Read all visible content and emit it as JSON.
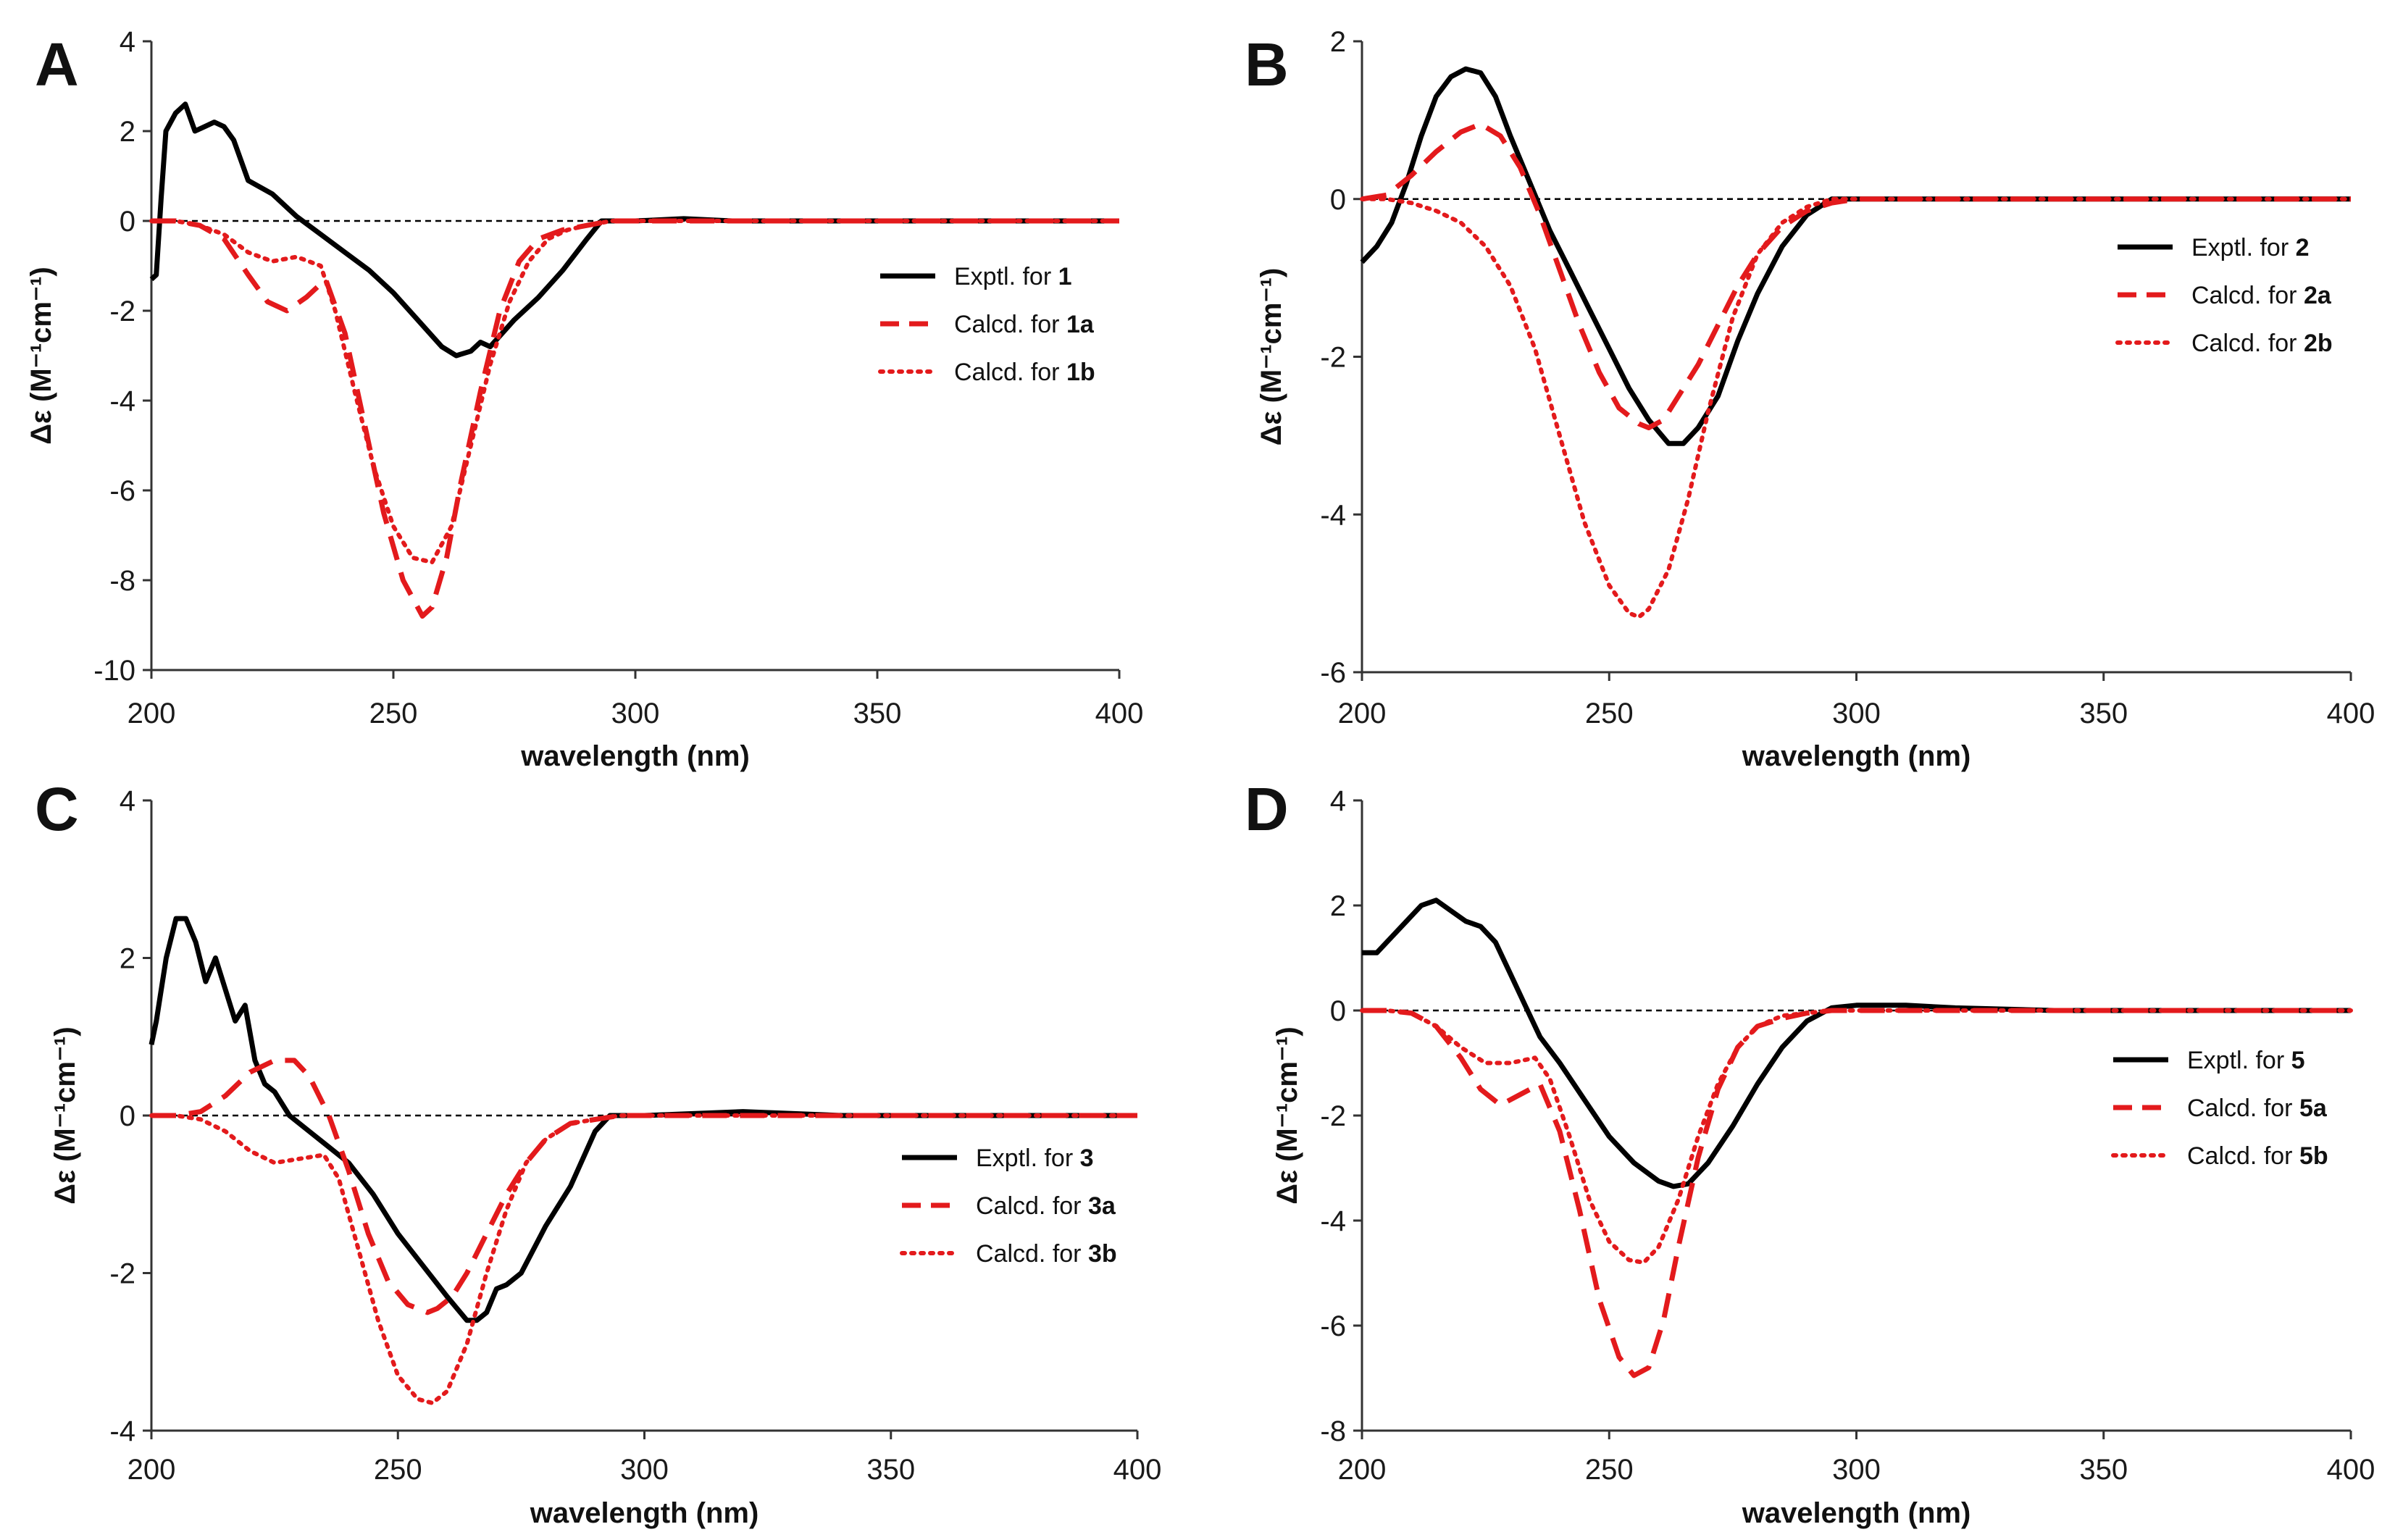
{
  "figure": {
    "colors": {
      "experimental": "#000000",
      "calc_a": "#e31a1c",
      "calc_b": "#e31a1c",
      "baseline": "#000000"
    }
  },
  "chart_data": [
    {
      "panel": "A",
      "type": "line",
      "xlabel": "wavelength (nm)",
      "ylabel": "Δε (M⁻¹cm⁻¹)",
      "xlim": [
        200,
        400
      ],
      "ylim": [
        -10,
        4
      ],
      "xticks": [
        200,
        250,
        300,
        350,
        400
      ],
      "yticks": [
        -10,
        -8,
        -6,
        -4,
        -2,
        0,
        2,
        4
      ],
      "legend_position": "center-right",
      "series": [
        {
          "name": "Exptl. for 1",
          "legend_prefix": "Exptl. for ",
          "legend_compound": "1",
          "style": "solid",
          "x": [
            200,
            201,
            202,
            203,
            205,
            207,
            209,
            211,
            213,
            215,
            217,
            220,
            225,
            230,
            235,
            240,
            245,
            250,
            255,
            260,
            263,
            266,
            268,
            270,
            275,
            280,
            285,
            290,
            293,
            300,
            310,
            320,
            340,
            360,
            380,
            400
          ],
          "y": [
            -1.3,
            -1.2,
            0.5,
            2.0,
            2.4,
            2.6,
            2.0,
            2.1,
            2.2,
            2.1,
            1.8,
            0.9,
            0.6,
            0.1,
            -0.3,
            -0.7,
            -1.1,
            -1.6,
            -2.2,
            -2.8,
            -3.0,
            -2.9,
            -2.7,
            -2.8,
            -2.2,
            -1.7,
            -1.1,
            -0.4,
            0.0,
            0.0,
            0.05,
            0.0,
            0.0,
            0.0,
            0.0,
            0.0
          ]
        },
        {
          "name": "Calcd. for 1a",
          "legend_prefix": "Calcd. for ",
          "legend_compound": "1a",
          "style": "dashed",
          "x": [
            200,
            205,
            210,
            215,
            220,
            224,
            228,
            232,
            236,
            240,
            244,
            248,
            252,
            256,
            258,
            261,
            264,
            268,
            272,
            276,
            280,
            285,
            290,
            295,
            300,
            320,
            340,
            360,
            380,
            400
          ],
          "y": [
            0.0,
            0.0,
            -0.1,
            -0.4,
            -1.2,
            -1.8,
            -2.0,
            -1.7,
            -1.3,
            -2.5,
            -4.5,
            -6.5,
            -8.0,
            -8.8,
            -8.6,
            -7.5,
            -5.8,
            -3.8,
            -2.0,
            -0.9,
            -0.4,
            -0.2,
            -0.1,
            0.0,
            0.0,
            0.0,
            0.0,
            0.0,
            0.0,
            0.0
          ]
        },
        {
          "name": "Calcd. for 1b",
          "legend_prefix": "Calcd. for ",
          "legend_compound": "1b",
          "style": "dotted",
          "x": [
            200,
            205,
            210,
            215,
            220,
            225,
            230,
            235,
            238,
            242,
            246,
            250,
            254,
            258,
            262,
            266,
            270,
            274,
            278,
            282,
            286,
            290,
            295,
            300,
            320,
            340,
            360,
            380,
            400
          ],
          "y": [
            0.0,
            0.0,
            -0.1,
            -0.3,
            -0.7,
            -0.9,
            -0.8,
            -1.0,
            -2.0,
            -3.8,
            -5.5,
            -6.8,
            -7.5,
            -7.6,
            -6.8,
            -5.0,
            -3.2,
            -1.8,
            -0.9,
            -0.4,
            -0.2,
            -0.1,
            0.0,
            0.0,
            0.0,
            0.0,
            0.0,
            0.0,
            0.0
          ]
        }
      ]
    },
    {
      "panel": "B",
      "type": "line",
      "xlabel": "wavelength (nm)",
      "ylabel": "Δε (M⁻¹cm⁻¹)",
      "xlim": [
        200,
        400
      ],
      "ylim": [
        -6,
        2
      ],
      "xticks": [
        200,
        250,
        300,
        350,
        400
      ],
      "yticks": [
        -6,
        -4,
        -2,
        0,
        2
      ],
      "legend_position": "top-right",
      "series": [
        {
          "name": "Exptl. for 2",
          "legend_prefix": "Exptl. for ",
          "legend_compound": "2",
          "style": "solid",
          "x": [
            200,
            203,
            206,
            209,
            212,
            215,
            218,
            221,
            224,
            227,
            230,
            234,
            238,
            242,
            246,
            250,
            254,
            258,
            262,
            265,
            268,
            272,
            276,
            280,
            285,
            290,
            295,
            298,
            300,
            320,
            340,
            360,
            380,
            400
          ],
          "y": [
            -0.8,
            -0.6,
            -0.3,
            0.2,
            0.8,
            1.3,
            1.55,
            1.65,
            1.6,
            1.3,
            0.8,
            0.2,
            -0.4,
            -0.9,
            -1.4,
            -1.9,
            -2.4,
            -2.8,
            -3.1,
            -3.1,
            -2.9,
            -2.5,
            -1.8,
            -1.2,
            -0.6,
            -0.2,
            0.0,
            0.0,
            0.0,
            0.0,
            0.0,
            0.0,
            0.0,
            0.0
          ]
        },
        {
          "name": "Calcd. for 2a",
          "legend_prefix": "Calcd. for ",
          "legend_compound": "2a",
          "style": "dashed",
          "x": [
            200,
            205,
            210,
            215,
            220,
            224,
            228,
            232,
            236,
            240,
            244,
            248,
            252,
            256,
            258,
            261,
            264,
            268,
            272,
            276,
            280,
            285,
            290,
            295,
            300,
            320,
            340,
            360,
            380,
            400
          ],
          "y": [
            0.0,
            0.05,
            0.3,
            0.6,
            0.85,
            0.95,
            0.8,
            0.4,
            -0.2,
            -0.9,
            -1.6,
            -2.2,
            -2.65,
            -2.85,
            -2.9,
            -2.8,
            -2.5,
            -2.1,
            -1.6,
            -1.1,
            -0.7,
            -0.35,
            -0.15,
            -0.05,
            0.0,
            0.0,
            0.0,
            0.0,
            0.0,
            0.0
          ]
        },
        {
          "name": "Calcd. for 2b",
          "legend_prefix": "Calcd. for ",
          "legend_compound": "2b",
          "style": "dotted",
          "x": [
            200,
            205,
            210,
            215,
            220,
            225,
            230,
            235,
            240,
            245,
            250,
            254,
            256,
            258,
            262,
            266,
            270,
            275,
            280,
            285,
            290,
            295,
            300,
            320,
            340,
            360,
            380,
            400
          ],
          "y": [
            0.0,
            0.0,
            -0.05,
            -0.15,
            -0.3,
            -0.6,
            -1.1,
            -1.9,
            -3.0,
            -4.1,
            -4.9,
            -5.25,
            -5.3,
            -5.2,
            -4.7,
            -3.8,
            -2.7,
            -1.5,
            -0.7,
            -0.3,
            -0.1,
            0.0,
            0.0,
            0.0,
            0.0,
            0.0,
            0.0,
            0.0
          ]
        }
      ]
    },
    {
      "panel": "C",
      "type": "line",
      "xlabel": "wavelength (nm)",
      "ylabel": "Δε (M⁻¹cm⁻¹)",
      "xlim": [
        200,
        400
      ],
      "ylim": [
        -4,
        4
      ],
      "xticks": [
        200,
        250,
        300,
        350,
        400
      ],
      "yticks": [
        -4,
        -2,
        0,
        2,
        4
      ],
      "legend_position": "bottom-right",
      "series": [
        {
          "name": "Exptl. for 3",
          "legend_prefix": "Exptl. for ",
          "legend_compound": "3",
          "style": "solid",
          "x": [
            200,
            201,
            203,
            205,
            207,
            209,
            211,
            213,
            215,
            217,
            219,
            221,
            223,
            225,
            228,
            232,
            236,
            240,
            245,
            250,
            255,
            260,
            264,
            266,
            268,
            270,
            272,
            275,
            280,
            285,
            290,
            293,
            300,
            320,
            340,
            360,
            380,
            400
          ],
          "y": [
            0.9,
            1.2,
            2.0,
            2.5,
            2.5,
            2.2,
            1.7,
            2.0,
            1.6,
            1.2,
            1.4,
            0.7,
            0.4,
            0.3,
            0.0,
            -0.2,
            -0.4,
            -0.6,
            -1.0,
            -1.5,
            -1.9,
            -2.3,
            -2.6,
            -2.6,
            -2.5,
            -2.2,
            -2.15,
            -2.0,
            -1.4,
            -0.9,
            -0.2,
            0.0,
            0.0,
            0.05,
            0.0,
            0.0,
            0.0,
            0.0
          ]
        },
        {
          "name": "Calcd. for 3a",
          "legend_prefix": "Calcd. for ",
          "legend_compound": "3a",
          "style": "dashed",
          "x": [
            200,
            205,
            210,
            215,
            220,
            225,
            229,
            232,
            236,
            240,
            244,
            248,
            252,
            256,
            258,
            261,
            264,
            268,
            272,
            276,
            280,
            285,
            290,
            295,
            300,
            320,
            340,
            360,
            380,
            400
          ],
          "y": [
            0.0,
            0.0,
            0.05,
            0.25,
            0.55,
            0.7,
            0.7,
            0.5,
            0.0,
            -0.7,
            -1.5,
            -2.1,
            -2.4,
            -2.5,
            -2.45,
            -2.3,
            -2.0,
            -1.5,
            -1.0,
            -0.6,
            -0.3,
            -0.1,
            -0.05,
            0.0,
            0.0,
            0.0,
            0.0,
            0.0,
            0.0,
            0.0
          ]
        },
        {
          "name": "Calcd. for 3b",
          "legend_prefix": "Calcd. for ",
          "legend_compound": "3b",
          "style": "dotted",
          "x": [
            200,
            205,
            210,
            215,
            220,
            225,
            230,
            235,
            238,
            242,
            246,
            250,
            254,
            257,
            260,
            264,
            268,
            272,
            276,
            280,
            285,
            290,
            295,
            300,
            320,
            340,
            360,
            380,
            400
          ],
          "y": [
            0.0,
            0.0,
            -0.05,
            -0.2,
            -0.45,
            -0.6,
            -0.55,
            -0.5,
            -0.8,
            -1.7,
            -2.6,
            -3.3,
            -3.6,
            -3.65,
            -3.5,
            -2.9,
            -2.0,
            -1.2,
            -0.6,
            -0.3,
            -0.1,
            -0.05,
            0.0,
            0.0,
            0.0,
            0.0,
            0.0,
            0.0,
            0.0
          ]
        }
      ]
    },
    {
      "panel": "D",
      "type": "line",
      "xlabel": "wavelength (nm)",
      "ylabel": "Δε (M⁻¹cm⁻¹)",
      "xlim": [
        200,
        400
      ],
      "ylim": [
        -8,
        4
      ],
      "xticks": [
        200,
        250,
        300,
        350,
        400
      ],
      "yticks": [
        -8,
        -6,
        -4,
        -2,
        0,
        2,
        4
      ],
      "legend_position": "center-right",
      "series": [
        {
          "name": "Exptl. for 5",
          "legend_prefix": "Exptl. for ",
          "legend_compound": "5",
          "style": "solid",
          "x": [
            200,
            203,
            206,
            209,
            212,
            215,
            218,
            221,
            224,
            227,
            230,
            233,
            236,
            240,
            245,
            250,
            255,
            260,
            263,
            266,
            270,
            275,
            280,
            285,
            290,
            295,
            300,
            310,
            320,
            340,
            360,
            380,
            400
          ],
          "y": [
            1.1,
            1.1,
            1.4,
            1.7,
            2.0,
            2.1,
            1.9,
            1.7,
            1.6,
            1.3,
            0.7,
            0.1,
            -0.5,
            -1.0,
            -1.7,
            -2.4,
            -2.9,
            -3.25,
            -3.35,
            -3.3,
            -2.9,
            -2.2,
            -1.4,
            -0.7,
            -0.2,
            0.05,
            0.1,
            0.1,
            0.05,
            0.0,
            0.0,
            0.0,
            0.0
          ]
        },
        {
          "name": "Calcd. for 5a",
          "legend_prefix": "Calcd. for ",
          "legend_compound": "5a",
          "style": "dashed",
          "x": [
            200,
            205,
            210,
            215,
            220,
            224,
            228,
            232,
            236,
            240,
            244,
            248,
            252,
            255,
            258,
            261,
            264,
            268,
            272,
            276,
            280,
            285,
            290,
            295,
            300,
            320,
            340,
            360,
            380,
            400
          ],
          "y": [
            0.0,
            0.0,
            -0.05,
            -0.3,
            -0.9,
            -1.5,
            -1.8,
            -1.6,
            -1.4,
            -2.3,
            -3.8,
            -5.5,
            -6.6,
            -6.95,
            -6.8,
            -5.9,
            -4.5,
            -2.8,
            -1.5,
            -0.7,
            -0.3,
            -0.15,
            -0.05,
            0.0,
            0.0,
            0.0,
            0.0,
            0.0,
            0.0,
            0.0
          ]
        },
        {
          "name": "Calcd. for 5b",
          "legend_prefix": "Calcd. for ",
          "legend_compound": "5b",
          "style": "dotted",
          "x": [
            200,
            205,
            210,
            215,
            220,
            225,
            230,
            235,
            238,
            242,
            246,
            250,
            254,
            257,
            260,
            264,
            268,
            272,
            276,
            280,
            285,
            290,
            295,
            300,
            320,
            340,
            360,
            380,
            400
          ],
          "y": [
            0.0,
            0.0,
            -0.05,
            -0.3,
            -0.7,
            -1.0,
            -1.0,
            -0.9,
            -1.3,
            -2.4,
            -3.6,
            -4.4,
            -4.75,
            -4.8,
            -4.5,
            -3.6,
            -2.4,
            -1.4,
            -0.7,
            -0.3,
            -0.1,
            -0.05,
            0.0,
            0.0,
            0.0,
            0.0,
            0.0,
            0.0,
            0.0
          ]
        }
      ]
    }
  ]
}
